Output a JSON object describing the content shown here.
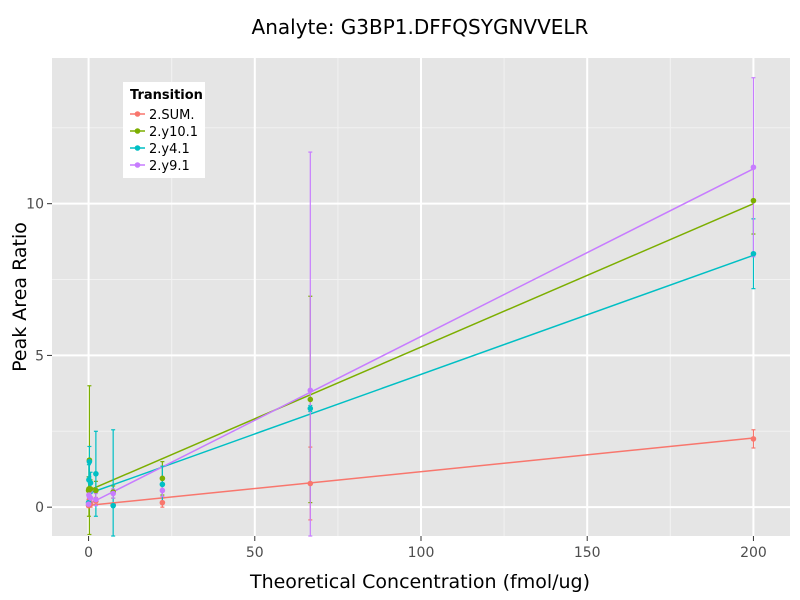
{
  "chart_data": {
    "type": "scatter",
    "title": "Analyte: G3BP1.DFFQSYGNVVELR",
    "xlabel": "Theoretical Concentration (fmol/ug)",
    "ylabel": "Peak Area Ratio",
    "xlim": [
      -11,
      211
    ],
    "ylim": [
      -0.95,
      14.8
    ],
    "x_ticks": [
      0,
      50,
      100,
      150,
      200
    ],
    "y_ticks": [
      0,
      5,
      10
    ],
    "grid": true,
    "legend": {
      "title": "Transition",
      "position": "top-left"
    },
    "series": [
      {
        "name": "2.SUM.",
        "color": "#F8766D",
        "points": [
          {
            "x": 0,
            "y": 0.05,
            "err": 0.05
          },
          {
            "x": 0.1,
            "y": 0.12,
            "err": 0.1
          },
          {
            "x": 0.25,
            "y": 0.25,
            "err": 0.15
          },
          {
            "x": 0.6,
            "y": 0.1,
            "err": 0.1
          },
          {
            "x": 2.2,
            "y": 0.2,
            "err": 0.12
          },
          {
            "x": 7.4,
            "y": 0.08,
            "err": 0.05
          },
          {
            "x": 22.2,
            "y": 0.15,
            "err": 0.15
          },
          {
            "x": 66.7,
            "y": 0.78,
            "err": 1.2
          },
          {
            "x": 200,
            "y": 2.25,
            "err": 0.3
          }
        ],
        "fit_line": [
          [
            0,
            0.06
          ],
          [
            200,
            2.28
          ]
        ]
      },
      {
        "name": "2.y10.1",
        "color": "#7CAE00",
        "points": [
          {
            "x": 0,
            "y": 0.55,
            "err": 0.45
          },
          {
            "x": 0.1,
            "y": 0.6,
            "err": 0.9
          },
          {
            "x": 0.25,
            "y": 1.55,
            "err": 2.45
          },
          {
            "x": 0.6,
            "y": 0.6,
            "err": 0.3
          },
          {
            "x": 2.2,
            "y": 0.55,
            "err": 0.3
          },
          {
            "x": 7.4,
            "y": 0.5,
            "err": 0.2
          },
          {
            "x": 22.2,
            "y": 0.95,
            "err": 0.55
          },
          {
            "x": 66.7,
            "y": 3.55,
            "err": 3.4
          },
          {
            "x": 200,
            "y": 10.1,
            "err": 1.1
          }
        ],
        "fit_line": [
          [
            0,
            0.55
          ],
          [
            200,
            10.0
          ]
        ]
      },
      {
        "name": "2.y4.1",
        "color": "#00BFC4",
        "points": [
          {
            "x": 0,
            "y": 0.15,
            "err": 0.1
          },
          {
            "x": 0.1,
            "y": 0.9,
            "err": 0.5
          },
          {
            "x": 0.25,
            "y": 1.5,
            "err": 0.5
          },
          {
            "x": 0.6,
            "y": 0.8,
            "err": 0.35
          },
          {
            "x": 2.2,
            "y": 1.1,
            "err": 1.4
          },
          {
            "x": 7.4,
            "y": 0.05,
            "err": 2.5
          },
          {
            "x": 22.2,
            "y": 0.75,
            "err": 0.6
          },
          {
            "x": 66.7,
            "y": 3.25,
            "err": 0.1
          },
          {
            "x": 200,
            "y": 8.35,
            "err": 1.15
          }
        ],
        "fit_line": [
          [
            0,
            0.45
          ],
          [
            200,
            8.3
          ]
        ]
      },
      {
        "name": "2.y9.1",
        "color": "#C77CFF",
        "points": [
          {
            "x": 0,
            "y": 0.1,
            "err": 0.1
          },
          {
            "x": 0.1,
            "y": 0.4,
            "err": 0.25
          },
          {
            "x": 0.25,
            "y": 0.35,
            "err": 0.2
          },
          {
            "x": 0.6,
            "y": 0.3,
            "err": 0.2
          },
          {
            "x": 2.2,
            "y": 0.25,
            "err": 0.2
          },
          {
            "x": 7.4,
            "y": 0.45,
            "err": 0.15
          },
          {
            "x": 22.2,
            "y": 0.55,
            "err": 0.2
          },
          {
            "x": 66.7,
            "y": 3.85,
            "err": 7.85
          },
          {
            "x": 200,
            "y": 11.2,
            "err": 2.95
          }
        ],
        "fit_line": [
          [
            0,
            0.1
          ],
          [
            200,
            11.15
          ]
        ]
      }
    ]
  }
}
